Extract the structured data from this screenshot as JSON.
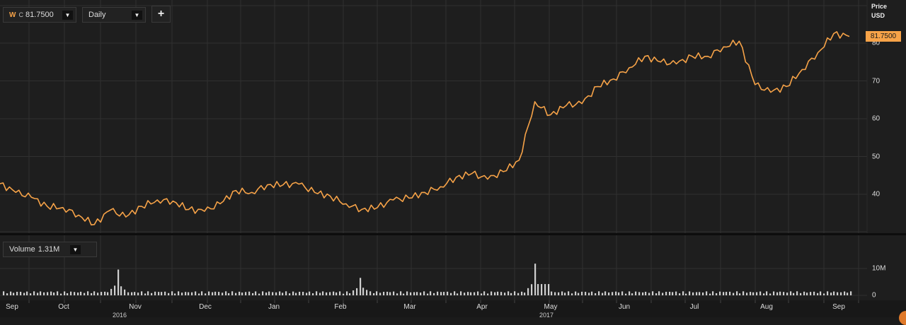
{
  "toolbar": {
    "symbol": {
      "ticker": "W",
      "type": "C",
      "value": "81.7500",
      "dropdown_icon": "▼"
    },
    "interval": {
      "label": "Daily",
      "dropdown_icon": "▼"
    },
    "add_button": "+"
  },
  "price_axis": {
    "title": "Price",
    "currency": "USD",
    "ticks": [
      "80",
      "70",
      "60",
      "50",
      "40"
    ],
    "last_price": "81.7500"
  },
  "volume_panel": {
    "label": "Volume",
    "value": "1.31M",
    "dropdown_icon": "▼",
    "ticks": [
      "10M",
      "0"
    ]
  },
  "x_axis": {
    "months": [
      "Sep",
      "Oct",
      "Nov",
      "Dec",
      "Jan",
      "Feb",
      "Mar",
      "Apr",
      "May",
      "Jun",
      "Jul",
      "Aug",
      "Sep"
    ],
    "years": [
      "2016",
      "2017"
    ]
  },
  "colors": {
    "price_line": "#f7a348",
    "background": "#1e1e1e",
    "grid": "#303030",
    "volume_bar": "#cfcfcf",
    "last_price_badge": "#f7a348"
  },
  "chart_data": [
    {
      "type": "line",
      "title": "W C daily price",
      "xlabel": "",
      "ylabel": "Price USD",
      "ylim": [
        30,
        85
      ],
      "grid": true,
      "legend": "none",
      "x": [
        "2016-09-01",
        "2016-09-08",
        "2016-09-15",
        "2016-09-22",
        "2016-09-29",
        "2016-10-06",
        "2016-10-13",
        "2016-10-20",
        "2016-10-27",
        "2016-11-03",
        "2016-11-10",
        "2016-11-17",
        "2016-11-24",
        "2016-12-01",
        "2016-12-08",
        "2016-12-15",
        "2016-12-22",
        "2016-12-29",
        "2017-01-05",
        "2017-01-12",
        "2017-01-19",
        "2017-01-26",
        "2017-02-02",
        "2017-02-09",
        "2017-02-16",
        "2017-02-23",
        "2017-03-02",
        "2017-03-09",
        "2017-03-16",
        "2017-03-23",
        "2017-03-30",
        "2017-04-06",
        "2017-04-13",
        "2017-04-20",
        "2017-04-27",
        "2017-05-04",
        "2017-05-11",
        "2017-05-18",
        "2017-05-25",
        "2017-06-01",
        "2017-06-08",
        "2017-06-15",
        "2017-06-22",
        "2017-06-29",
        "2017-07-06",
        "2017-07-13",
        "2017-07-20",
        "2017-07-27",
        "2017-08-03",
        "2017-08-10",
        "2017-08-17",
        "2017-08-24",
        "2017-08-31",
        "2017-09-07",
        "2017-09-12"
      ],
      "series": [
        {
          "name": "W C",
          "values": [
            42.8,
            40.5,
            39.2,
            36.8,
            36.5,
            34.5,
            32.0,
            35.8,
            34.0,
            36.8,
            38.5,
            38.2,
            36.0,
            35.5,
            37.5,
            41.0,
            40.5,
            42.5,
            42.5,
            42.7,
            40.5,
            39.5,
            37.5,
            36.0,
            36.5,
            38.5,
            39.0,
            40.5,
            42.0,
            44.5,
            45.5,
            44.0,
            46.0,
            49.0,
            64.5,
            61.0,
            63.5,
            64.0,
            68.5,
            70.5,
            73.5,
            76.5,
            75.0,
            74.5,
            76.5,
            76.5,
            79.0,
            80.5,
            69.0,
            67.0,
            68.5,
            73.0,
            77.5,
            82.5,
            81.75
          ]
        }
      ]
    },
    {
      "type": "bar",
      "title": "Volume",
      "ylabel": "Volume",
      "ylim": [
        0,
        12000000
      ],
      "ticks": [
        "0",
        "10M"
      ],
      "notable_spikes": [
        {
          "x": "2016-11-09",
          "value": 9600000
        },
        {
          "x": "2017-02-08",
          "value": 6500000
        },
        {
          "x": "2017-04-28",
          "value": 11800000
        }
      ],
      "typical_value": 1300000,
      "latest_value": "1.31M"
    }
  ]
}
